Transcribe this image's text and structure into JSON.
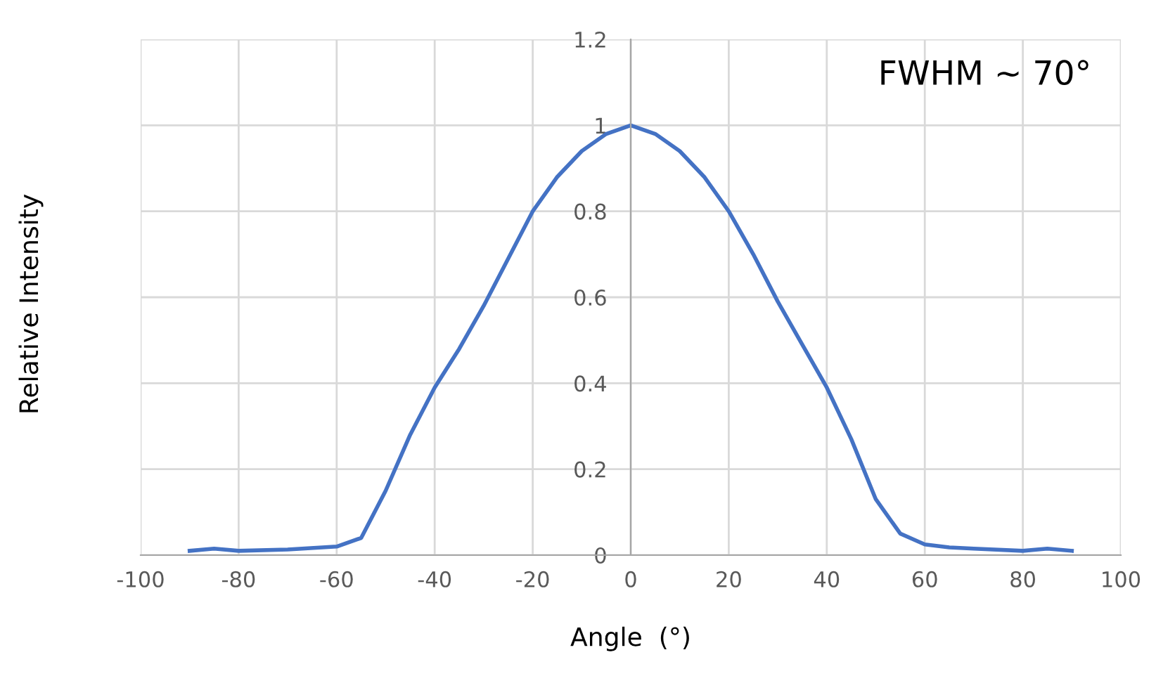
{
  "chart_data": {
    "type": "line",
    "xlabel": "Angle  (°)",
    "ylabel": "Relative Intensity",
    "annotations": [
      "FWHM ~ 70°"
    ],
    "series": [
      {
        "color": "#4472c4",
        "x": [
          -90,
          -85,
          -80,
          -70,
          -60,
          -55,
          -50,
          -45,
          -40,
          -35,
          -30,
          -25,
          -20,
          -15,
          -10,
          -5,
          0,
          5,
          10,
          15,
          20,
          25,
          30,
          35,
          40,
          45,
          50,
          55,
          60,
          65,
          70,
          80,
          85,
          90
        ],
        "values": [
          0.01,
          0.015,
          0.01,
          0.013,
          0.02,
          0.04,
          0.15,
          0.28,
          0.39,
          0.48,
          0.58,
          0.69,
          0.8,
          0.88,
          0.94,
          0.98,
          1.0,
          0.98,
          0.94,
          0.88,
          0.8,
          0.7,
          0.59,
          0.49,
          0.39,
          0.27,
          0.13,
          0.05,
          0.025,
          0.018,
          0.015,
          0.01,
          0.015,
          0.01
        ]
      }
    ],
    "xlim": [
      -100,
      100
    ],
    "xticks": [
      -100,
      -80,
      -60,
      -40,
      -20,
      0,
      20,
      40,
      60,
      80,
      100
    ],
    "ylim": [
      0,
      1.2
    ],
    "yticks": [
      0,
      0.2,
      0.4,
      0.6,
      0.8,
      1,
      1.2
    ],
    "grid": true,
    "marker": "none",
    "line_style": "solid"
  }
}
